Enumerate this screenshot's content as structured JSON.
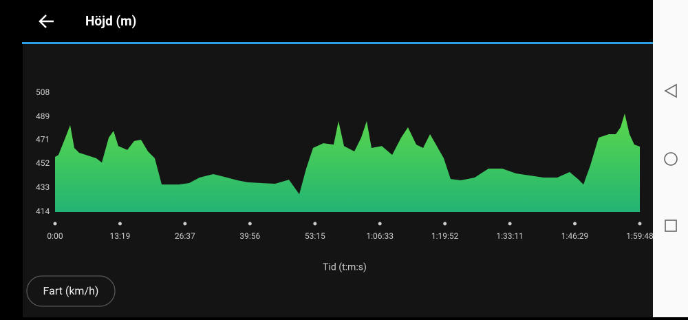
{
  "header": {
    "title": "Höjd (m)"
  },
  "chart_data": {
    "type": "area",
    "x": [
      0,
      42,
      127,
      186,
      237,
      296,
      381,
      507,
      575,
      660,
      719,
      778,
      888,
      973,
      1057,
      1142,
      1226,
      1311,
      1395,
      1522,
      1649,
      1776,
      1945,
      2114,
      2241,
      2368,
      2537,
      2706,
      2875,
      3002,
      3087,
      3171,
      3298,
      3425,
      3484,
      3552,
      3679,
      3763,
      3831,
      3890,
      4017,
      4144,
      4254,
      4338,
      4440,
      4524,
      4609,
      4693,
      4778,
      4862,
      4989,
      5158,
      5328,
      5497,
      5666,
      5835,
      6004,
      6173,
      6325,
      6427,
      6495,
      6579,
      6681,
      6808,
      6892,
      6951,
      7002,
      7061,
      7120,
      7188
    ],
    "values": [
      457.5,
      459,
      472.7,
      482.5,
      464.5,
      460.7,
      459,
      456.4,
      453,
      472.7,
      478,
      466,
      463,
      470,
      471,
      461.8,
      456.4,
      435.7,
      435.7,
      435.7,
      436.8,
      441.2,
      443.9,
      441.2,
      439,
      437.4,
      436.8,
      436.3,
      439.5,
      428,
      448.2,
      464.5,
      468.3,
      467.2,
      485.7,
      466,
      461.8,
      472.7,
      485.7,
      464.5,
      466,
      459,
      472.7,
      480.8,
      467.2,
      464.5,
      475.4,
      466,
      456.4,
      440,
      439,
      441.2,
      448.2,
      448.2,
      444.4,
      442.8,
      441.2,
      441.2,
      445.5,
      440,
      435.7,
      450.7,
      472.7,
      475.4,
      475.4,
      480.8,
      491.7,
      475.4,
      467.2,
      465.6
    ],
    "colors": [
      "#5cd84a",
      "#22b474"
    ],
    "xlim": [
      0,
      7188
    ],
    "xticks": [
      {
        "value": 0,
        "label": "0:00"
      },
      {
        "value": 799,
        "label": "13:19"
      },
      {
        "value": 1597,
        "label": "26:37"
      },
      {
        "value": 2396,
        "label": "39:56"
      },
      {
        "value": 3195,
        "label": "53:15"
      },
      {
        "value": 3993,
        "label": "1:06:33"
      },
      {
        "value": 4792,
        "label": "1:19:52"
      },
      {
        "value": 5591,
        "label": "1:33:11"
      },
      {
        "value": 6389,
        "label": "1:46:29"
      },
      {
        "value": 7188,
        "label": "1:59:48"
      }
    ],
    "ylim": [
      414,
      508
    ],
    "yticks": [
      414,
      433,
      452,
      471,
      489,
      508
    ],
    "x_label": "Tid (t:m:s)"
  },
  "button": {
    "label": "Fart (km/h)"
  }
}
